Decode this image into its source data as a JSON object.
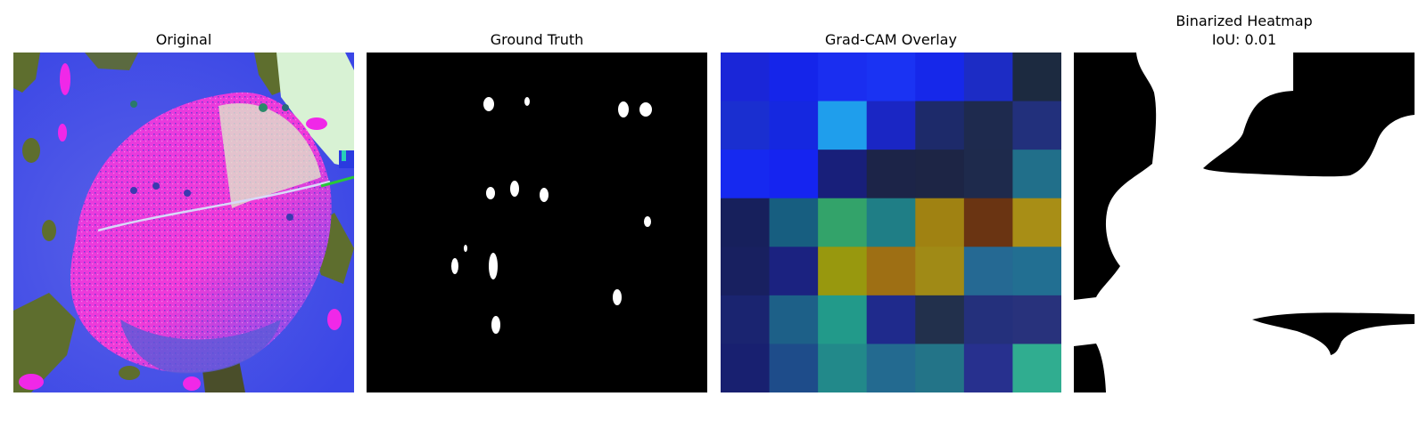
{
  "panels": {
    "original": {
      "title": "Original"
    },
    "ground_truth": {
      "title": "Ground Truth"
    },
    "gradcam": {
      "title": "Grad-CAM Overlay",
      "grid_colors": [
        [
          "#1a26d8",
          "#1525ea",
          "#1a2ef0",
          "#1a33f3",
          "#1628ea",
          "#1c2cc5",
          "#1c2a40"
        ],
        [
          "#1a2fd0",
          "#1528e0",
          "#1f9eec",
          "#1a26c4",
          "#1d2a6a",
          "#1e2a4e",
          "#22307c"
        ],
        [
          "#1629f0",
          "#1524f0",
          "#181f7a",
          "#1c2448",
          "#1d2545",
          "#1e2a4c",
          "#216f8a"
        ],
        [
          "#17205c",
          "#175e80",
          "#33a36a",
          "#1f7e86",
          "#a08212",
          "#6a3412",
          "#a88e16"
        ],
        [
          "#182060",
          "#1b2280",
          "#98980e",
          "#9e6f14",
          "#a08a16",
          "#256993",
          "#226f92"
        ],
        [
          "#1a2470",
          "#1d6088",
          "#229a8a",
          "#1f2a8c",
          "#22304c",
          "#24307c",
          "#28327c"
        ],
        [
          "#182070",
          "#1e4c8a",
          "#22898a",
          "#236a90",
          "#237488",
          "#27308e",
          "#30ad90"
        ]
      ]
    },
    "binarized": {
      "title_line1": "Binarized Heatmap",
      "title_line2": "IoU: 0.01"
    }
  }
}
